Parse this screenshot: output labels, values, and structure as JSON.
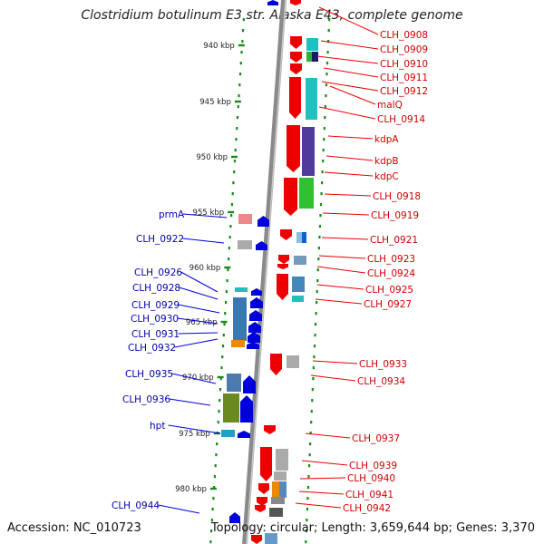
{
  "title": "Clostridium botulinum E3 str. Alaska E43, complete genome",
  "accession_label": "Accession: NC_010723",
  "topology_label": "Topology: circular; Length: 3,659,644 bp; Genes: 3,370",
  "colors": {
    "forward": "#0000dd",
    "reverse": "#ee0000",
    "forward_label": "#0000aa",
    "reverse_label": "#cc0000",
    "backbone": "#8a8a8a",
    "ruler": "#1a8a1a"
  },
  "ruler_ticks": [
    "940 kbp",
    "945 kbp",
    "950 kbp",
    "955 kbp",
    "960 kbp",
    "965 kbp",
    "970 kbp",
    "975 kbp",
    "980 kbp"
  ],
  "forward_genes": [
    "prmA",
    "CLH_0922",
    "CLH_0926",
    "CLH_0928",
    "CLH_0929",
    "CLH_0930",
    "CLH_0931",
    "CLH_0932",
    "CLH_0935",
    "CLH_0936",
    "hpt",
    "CLH_0944"
  ],
  "reverse_genes": [
    "CLH_0908",
    "CLH_0909",
    "CLH_0910",
    "CLH_0911",
    "CLH_0912",
    "malQ",
    "CLH_0914",
    "kdpA",
    "kdpB",
    "kdpC",
    "CLH_0918",
    "CLH_0919",
    "CLH_0921",
    "CLH_0923",
    "CLH_0924",
    "CLH_0925",
    "CLH_0927",
    "CLH_0933",
    "CLH_0934",
    "CLH_0937",
    "CLH_0939",
    "CLH_0940",
    "CLH_0941",
    "CLH_0942"
  ]
}
